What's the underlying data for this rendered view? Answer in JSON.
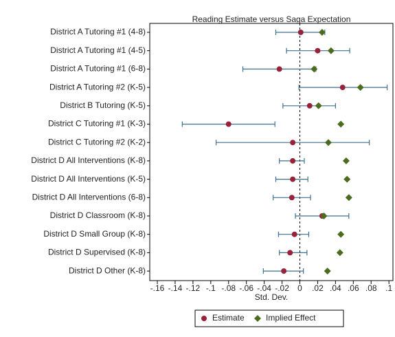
{
  "chart_data": {
    "type": "dot",
    "title": "Reading Estimate versus Saga Expectation",
    "xlabel": "Std. Dev.",
    "categories": [
      "District A Tutoring #1 (4-8)",
      "District A Tutoring #1 (4-5)",
      "District A Tutoring #1 (6-8)",
      "District A Tutoring #2 (K-5)",
      "District B Tutoring (K-5)",
      "District C Tutoring #1 (K-3)",
      "District C Tutoring #2 (K-2)",
      "District D All Interventions (K-8)",
      "District D All Interventions (K-5)",
      "District D All Interventions (6-8)",
      "District D Classroom (K-8)",
      "District D Small Group (K-8)",
      "District D Supervised (K-8)",
      "District D Other (K-8)"
    ],
    "series": [
      {
        "name": "Estimate",
        "color": "#98223a",
        "marker": "circle",
        "values": [
          0.001,
          0.02,
          -0.023,
          0.048,
          0.011,
          -0.08,
          -0.008,
          -0.008,
          -0.008,
          -0.009,
          0.025,
          -0.006,
          -0.011,
          -0.018
        ],
        "lower": [
          -0.027,
          -0.015,
          -0.064,
          -0.001,
          -0.019,
          -0.132,
          -0.094,
          -0.023,
          -0.027,
          -0.03,
          -0.005,
          -0.024,
          -0.023,
          -0.041
        ],
        "upper": [
          0.028,
          0.056,
          0.018,
          0.098,
          0.04,
          -0.028,
          0.078,
          0.005,
          0.009,
          0.012,
          0.055,
          0.01,
          0.008,
          0.004
        ]
      },
      {
        "name": "Implied Effect",
        "color": "#4d6b1e",
        "marker": "diamond",
        "values": [
          0.025,
          0.035,
          0.016,
          0.068,
          0.021,
          0.046,
          0.032,
          0.052,
          0.053,
          0.055,
          0.027,
          0.046,
          0.045,
          0.031
        ]
      }
    ],
    "errorbar_color": "#3d6f8e",
    "xline": 0,
    "xlim": [
      -0.1685,
      0.1045
    ],
    "xticks": [
      {
        "value": -0.16,
        "label": "-.16"
      },
      {
        "value": -0.14,
        "label": "-.14"
      },
      {
        "value": -0.12,
        "label": "-.12"
      },
      {
        "value": -0.1,
        "label": "-.1"
      },
      {
        "value": -0.08,
        "label": "-.08"
      },
      {
        "value": -0.06,
        "label": "-.06"
      },
      {
        "value": -0.04,
        "label": "-.04"
      },
      {
        "value": -0.02,
        "label": "-.02"
      },
      0,
      {
        "value": 0.02,
        "label": ".02"
      },
      {
        "value": 0.04,
        "label": ".04"
      },
      {
        "value": 0.06,
        "label": ".06"
      },
      {
        "value": 0.08,
        "label": ".08"
      },
      {
        "value": 0.1,
        "label": ".1"
      }
    ],
    "legend": "bottom"
  }
}
